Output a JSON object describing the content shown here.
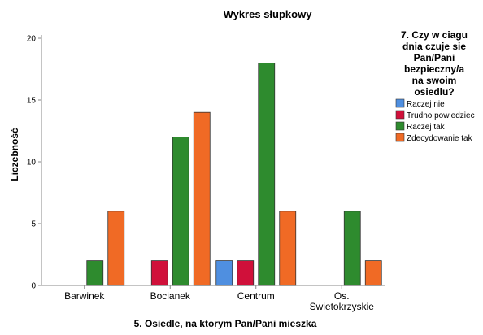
{
  "chart_data": {
    "type": "bar",
    "title": "Wykres słupkowy",
    "xlabel": "5. Osiedle, na ktorym Pan/Pani mieszka",
    "ylabel": "Liczebność",
    "ylim": [
      0,
      20
    ],
    "yticks": [
      0,
      5,
      10,
      15,
      20
    ],
    "grid": false,
    "categories": [
      [
        "Barwinek"
      ],
      [
        "Bocianek"
      ],
      [
        "Centrum"
      ],
      [
        "Os.",
        "Swietokrzyskie"
      ]
    ],
    "series": [
      {
        "name": "Raczej nie",
        "color": "#4f8fe0",
        "values": [
          0,
          0,
          2,
          0
        ]
      },
      {
        "name": "Trudno powiedziec",
        "color": "#d0103a",
        "values": [
          0,
          2,
          2,
          0
        ]
      },
      {
        "name": "Raczej tak",
        "color": "#2e8b2e",
        "values": [
          2,
          12,
          18,
          6
        ]
      },
      {
        "name": "Zdecydowanie tak",
        "color": "#f06a25",
        "values": [
          6,
          14,
          6,
          2
        ]
      }
    ],
    "legend": {
      "placement": "right",
      "title_lines": [
        "7. Czy w ciagu",
        "dnia czuje sie",
        "Pan/Pani",
        "bezpieczny/a",
        "na swoim",
        "osiedlu?"
      ]
    }
  }
}
